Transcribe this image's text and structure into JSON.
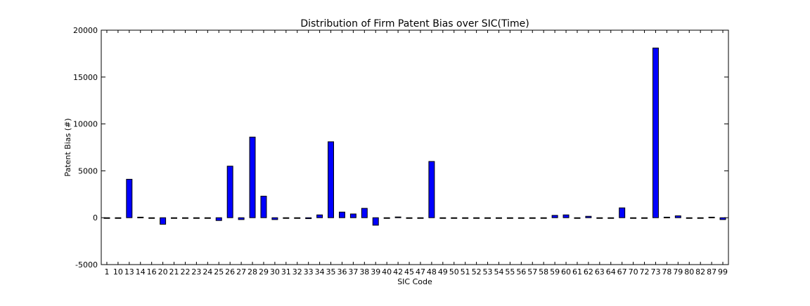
{
  "chart_data": {
    "type": "bar",
    "title": "Distribution of Firm Patent Bias over SIC(Time)",
    "xlabel": "SIC Code",
    "ylabel": "Patent Bias (#)",
    "ylim": [
      -5000,
      20000
    ],
    "yticks": [
      "-5000",
      "0",
      "5000",
      "10000",
      "15000",
      "20000"
    ],
    "grid": false,
    "bar_color": "#0000ff",
    "categories": [
      "1",
      "10",
      "13",
      "14",
      "16",
      "20",
      "21",
      "22",
      "23",
      "24",
      "25",
      "26",
      "27",
      "28",
      "29",
      "30",
      "31",
      "32",
      "33",
      "34",
      "35",
      "36",
      "37",
      "38",
      "39",
      "40",
      "42",
      "45",
      "47",
      "48",
      "49",
      "50",
      "51",
      "52",
      "53",
      "54",
      "55",
      "56",
      "57",
      "58",
      "59",
      "60",
      "61",
      "62",
      "63",
      "64",
      "67",
      "70",
      "72",
      "73",
      "78",
      "79",
      "80",
      "82",
      "87",
      "99"
    ],
    "values": [
      0,
      0,
      4100,
      60,
      0,
      -700,
      0,
      0,
      0,
      0,
      -300,
      5500,
      -200,
      8600,
      2300,
      -200,
      0,
      0,
      -100,
      300,
      8100,
      600,
      400,
      1000,
      -800,
      0,
      80,
      0,
      0,
      6000,
      0,
      0,
      0,
      0,
      0,
      0,
      0,
      0,
      0,
      0,
      250,
      300,
      0,
      150,
      0,
      0,
      1050,
      0,
      0,
      18100,
      60,
      200,
      0,
      0,
      60,
      -200
    ]
  }
}
